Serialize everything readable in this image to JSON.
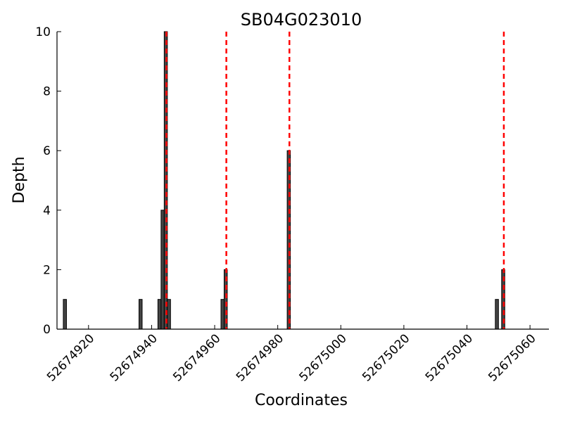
{
  "chart_data": {
    "type": "bar",
    "title": "SB04G023010",
    "xlabel": "Coordinates",
    "ylabel": "Depth",
    "xlim": [
      52674910,
      52675066
    ],
    "ylim": [
      0,
      10
    ],
    "grid": false,
    "x_ticks": [
      52674920,
      52674940,
      52674960,
      52674980,
      52675000,
      52675020,
      52675040,
      52675060
    ],
    "y_ticks": [
      0,
      2,
      4,
      6,
      8,
      10
    ],
    "bar_color": "#444444",
    "line_color": "#ff0000",
    "bars": [
      {
        "x": 52674912.5,
        "y": 1
      },
      {
        "x": 52674936.5,
        "y": 1
      },
      {
        "x": 52674942.5,
        "y": 1
      },
      {
        "x": 52674943.5,
        "y": 4
      },
      {
        "x": 52674944.5,
        "y": 10
      },
      {
        "x": 52674945.5,
        "y": 1
      },
      {
        "x": 52674962.5,
        "y": 1
      },
      {
        "x": 52674963.5,
        "y": 2
      },
      {
        "x": 52674983.5,
        "y": 6
      },
      {
        "x": 52675049.5,
        "y": 1
      },
      {
        "x": 52675051.5,
        "y": 2
      }
    ],
    "vlines": [
      52674944.7,
      52674963.7,
      52674983.7,
      52675051.7
    ]
  }
}
